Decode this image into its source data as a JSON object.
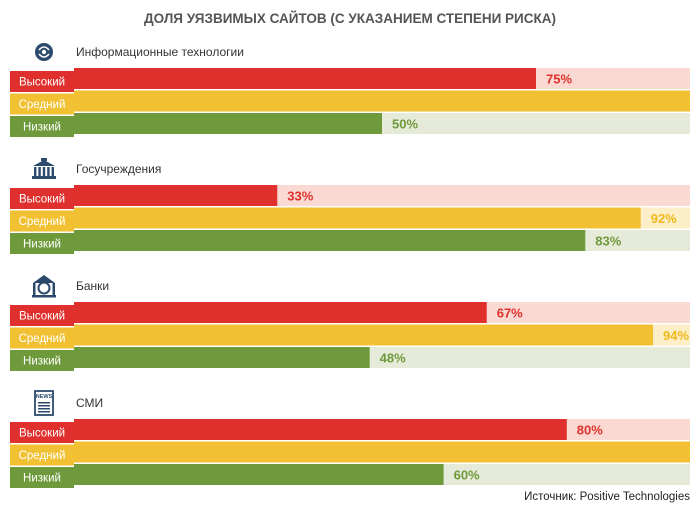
{
  "chart_data": {
    "type": "bar",
    "title": "ДОЛЯ УЯЗВИМЫХ САЙТОВ (С УКАЗАНИЕМ СТЕПЕНИ РИСКА)",
    "orientation": "horizontal",
    "xlim": [
      0,
      100
    ],
    "unit": "%",
    "levels": [
      {
        "name": "Высокий",
        "color": "#e0302d",
        "track": "#f9d9d1",
        "text": "#e0302d"
      },
      {
        "name": "Средний",
        "color": "#f2c133",
        "track": "#fcefc7",
        "text": "#f0b81a"
      },
      {
        "name": "Низкий",
        "color": "#6f9a3c",
        "track": "#e6ead8",
        "text": "#6f9a3c"
      }
    ],
    "groups": [
      {
        "name": "Информационные технологии",
        "icon": "it-globe-icon",
        "values": [
          75,
          100,
          50
        ]
      },
      {
        "name": "Госучреждения",
        "icon": "government-building-icon",
        "values": [
          33,
          92,
          83
        ]
      },
      {
        "name": "Банки",
        "icon": "bank-icon",
        "values": [
          67,
          94,
          48
        ]
      },
      {
        "name": "СМИ",
        "icon": "newspaper-icon",
        "values": [
          80,
          100,
          60
        ]
      }
    ],
    "grid": false,
    "legend": "none"
  },
  "footer": {
    "source": "Источник: Positive Technologies"
  },
  "colors": {
    "title": "#555555",
    "icon": "#2c4a6b"
  },
  "icons": {
    "newspaper_label": "NEWS"
  }
}
